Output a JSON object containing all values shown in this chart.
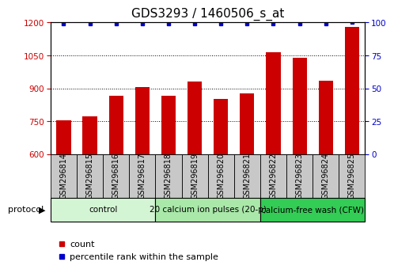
{
  "title": "GDS3293 / 1460506_s_at",
  "categories": [
    "GSM296814",
    "GSM296815",
    "GSM296816",
    "GSM296817",
    "GSM296818",
    "GSM296819",
    "GSM296820",
    "GSM296821",
    "GSM296822",
    "GSM296823",
    "GSM296824",
    "GSM296825"
  ],
  "bar_values": [
    755,
    773,
    868,
    907,
    868,
    932,
    851,
    876,
    1063,
    1040,
    936,
    1180
  ],
  "percentile_values": [
    99,
    99,
    99,
    99,
    99,
    99,
    99,
    99,
    99,
    99,
    99,
    100
  ],
  "bar_color": "#cc0000",
  "dot_color": "#0000cc",
  "ylim_left": [
    600,
    1200
  ],
  "ylim_right": [
    0,
    100
  ],
  "yticks_left": [
    600,
    750,
    900,
    1050,
    1200
  ],
  "yticks_right": [
    0,
    25,
    50,
    75,
    100
  ],
  "bg_color": "#ffffff",
  "xtick_box_color": "#c8c8c8",
  "protocol_groups": [
    {
      "label": "control",
      "start": 0,
      "end": 3,
      "color": "#d4f5d4"
    },
    {
      "label": "20 calcium ion pulses (20-p)",
      "start": 4,
      "end": 7,
      "color": "#aae8aa"
    },
    {
      "label": "calcium-free wash (CFW)",
      "start": 8,
      "end": 11,
      "color": "#33cc55"
    }
  ],
  "protocol_label": "protocol",
  "legend_count_label": "count",
  "legend_pct_label": "percentile rank within the sample",
  "title_fontsize": 11,
  "tick_fontsize": 7.5,
  "proto_fontsize": 7.5
}
